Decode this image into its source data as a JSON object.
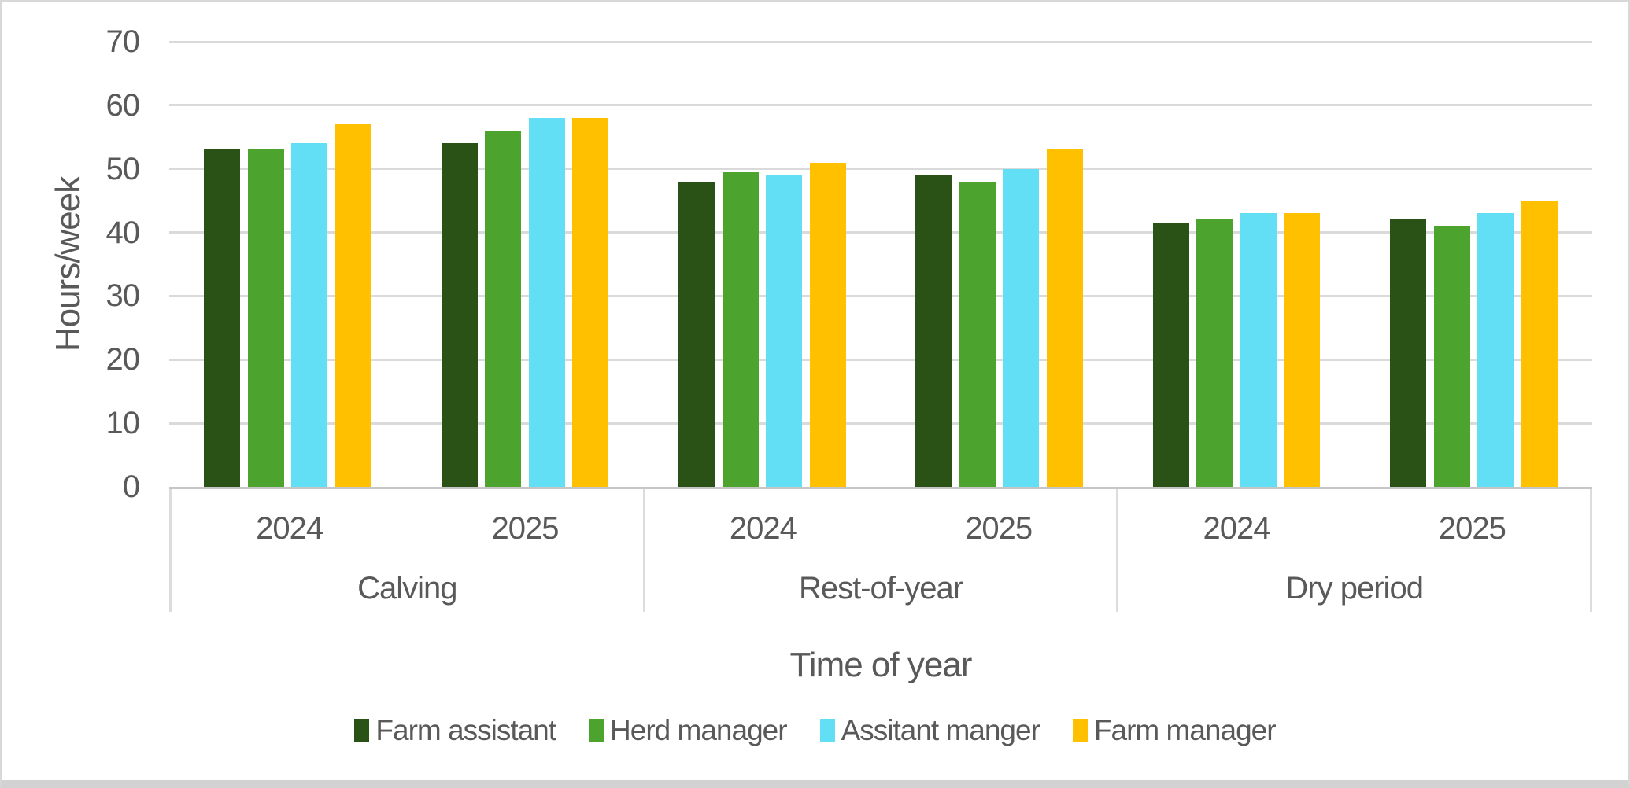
{
  "chart_data": {
    "type": "bar",
    "title": "",
    "ylabel": "Hours/week",
    "xlabel": "Time of year",
    "ylim": [
      0,
      70
    ],
    "ytick_interval": 10,
    "grid": true,
    "legend_position": "bottom",
    "colors": {
      "text": "#595959",
      "gridline": "#dadada",
      "axis_line": "#c6c6c6",
      "category_border": "#dcdcdc"
    },
    "category_groups": [
      {
        "label": "Calving",
        "subcategories": [
          "2024",
          "2025"
        ]
      },
      {
        "label": "Rest-of-year",
        "subcategories": [
          "2024",
          "2025"
        ]
      },
      {
        "label": "Dry period",
        "subcategories": [
          "2024",
          "2025"
        ]
      }
    ],
    "slot_order": [
      "Calving 2024",
      "Calving 2025",
      "Rest-of-year 2024",
      "Rest-of-year 2025",
      "Dry period 2024",
      "Dry period 2025"
    ],
    "series": [
      {
        "name": "Farm assistant",
        "color": "#2a5216",
        "values": [
          53,
          54,
          48,
          49,
          41.5,
          42
        ]
      },
      {
        "name": "Herd manager",
        "color": "#4ca42e",
        "values": [
          53,
          56,
          49.5,
          48,
          42,
          41
        ]
      },
      {
        "name": "Assitant manger",
        "color": "#62def5",
        "values": [
          54,
          58,
          49,
          50,
          43,
          43
        ]
      },
      {
        "name": "Farm manager",
        "color": "#ffc000",
        "values": [
          57,
          58,
          51,
          53,
          43,
          45
        ]
      }
    ]
  }
}
